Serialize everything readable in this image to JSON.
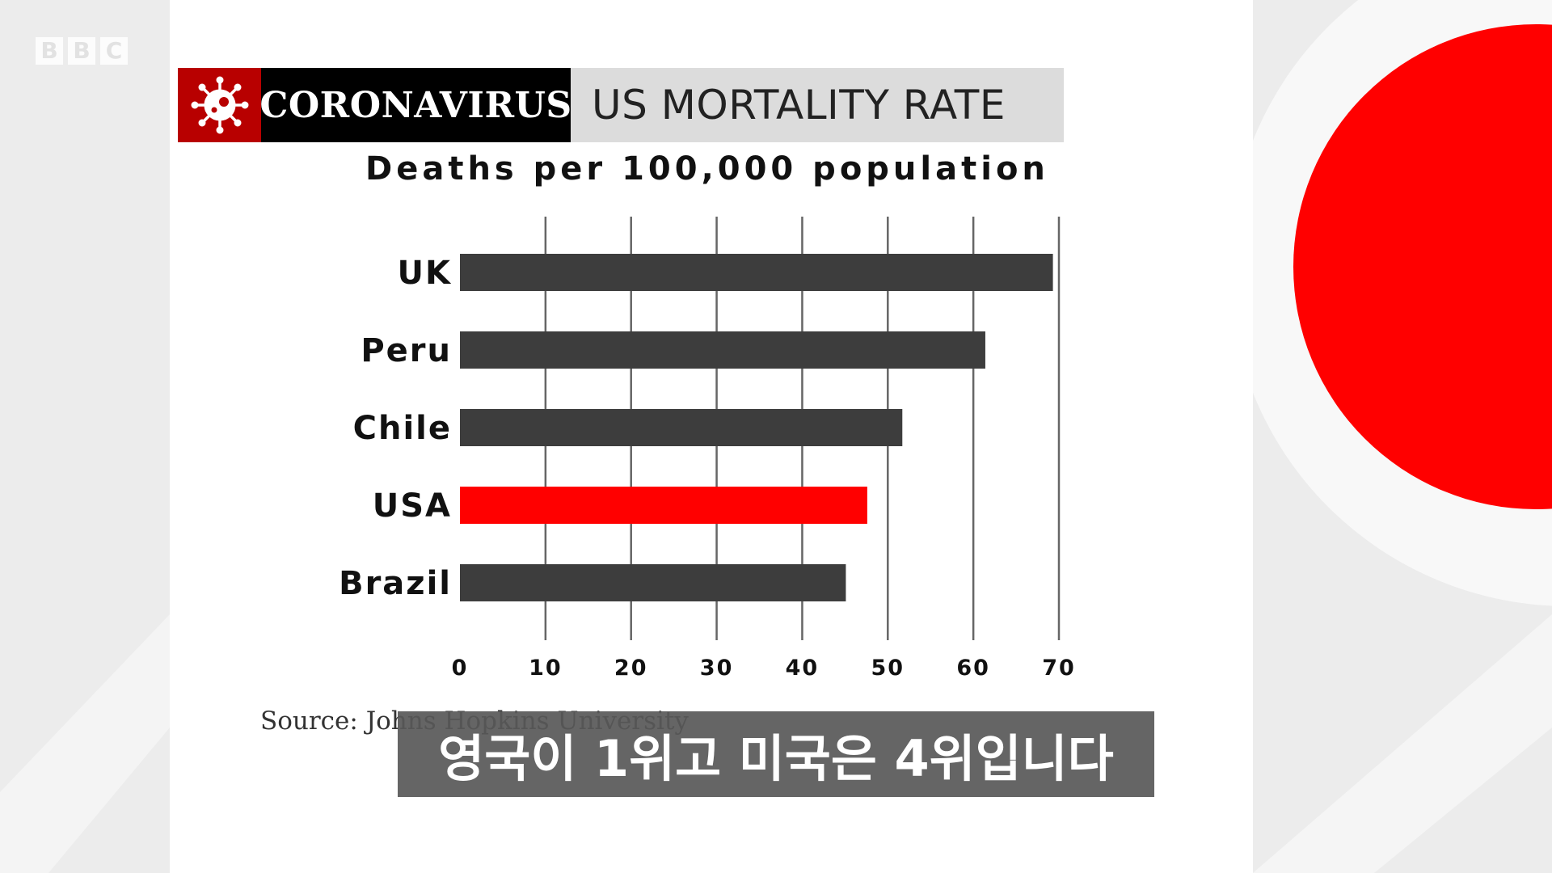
{
  "broadcaster": {
    "logo_letters": [
      "B",
      "B",
      "C"
    ]
  },
  "header": {
    "section_label": "CORONAVIRUS",
    "title": "US MORTALITY RATE"
  },
  "subtitle": "Deaths per 100,000 population",
  "source": "Source: Johns Hopkins University",
  "caption": "영국이 1위고 미국은 4위입니다",
  "colors": {
    "default_bar": "#3d3d3d",
    "highlight_bar": "#ff0000",
    "brand_red": "#b80000"
  },
  "chart_data": {
    "type": "bar",
    "orientation": "horizontal",
    "title": "Deaths per 100,000 population",
    "categories": [
      "UK",
      "Peru",
      "Chile",
      "USA",
      "Brazil"
    ],
    "values": [
      69.3,
      61.4,
      51.7,
      47.6,
      45.1
    ],
    "highlight": "USA",
    "xlim": [
      0,
      70
    ],
    "xticks": [
      0,
      10,
      20,
      30,
      40,
      50,
      60,
      70
    ],
    "grid": true,
    "legend": "none"
  }
}
